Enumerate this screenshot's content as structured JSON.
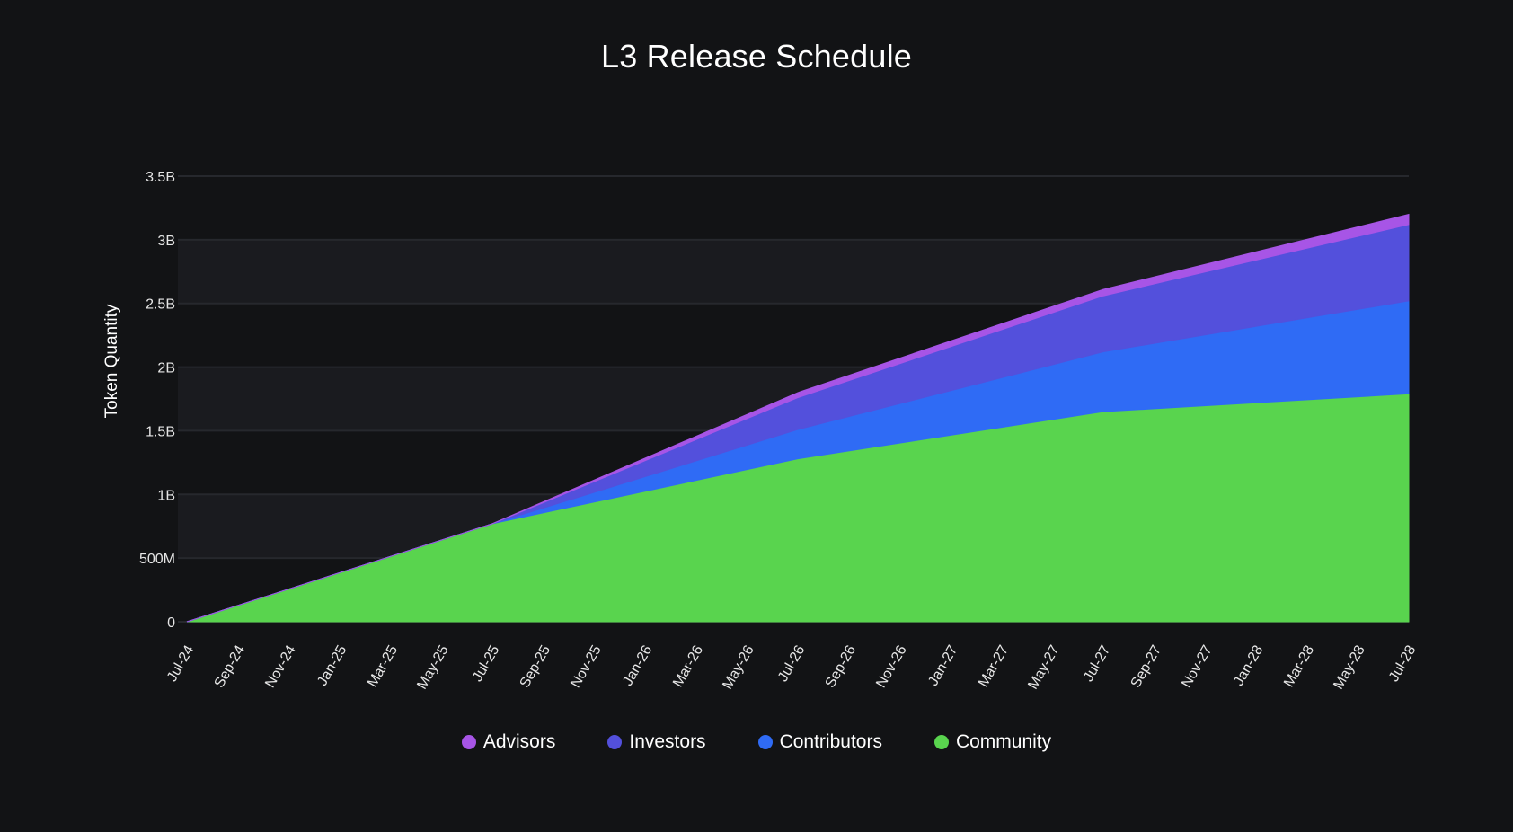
{
  "chart_data": {
    "type": "area",
    "stacked": true,
    "title": "L3 Release Schedule",
    "xlabel": "",
    "ylabel": "Token Quantity",
    "ylim": [
      0,
      3500000000
    ],
    "y_ticks": [
      {
        "value": 0,
        "label": "0"
      },
      {
        "value": 500000000,
        "label": "500M"
      },
      {
        "value": 1000000000,
        "label": "1B"
      },
      {
        "value": 1500000000,
        "label": "1.5B"
      },
      {
        "value": 2000000000,
        "label": "2B"
      },
      {
        "value": 2500000000,
        "label": "2.5B"
      },
      {
        "value": 3000000000,
        "label": "3B"
      },
      {
        "value": 3500000000,
        "label": "3.5B"
      }
    ],
    "x_ticks": [
      "Jul-24",
      "Sep-24",
      "Nov-24",
      "Jan-25",
      "Mar-25",
      "May-25",
      "Jul-25",
      "Sep-25",
      "Nov-25",
      "Jan-26",
      "Mar-26",
      "May-26",
      "Jul-26",
      "Sep-26",
      "Nov-26",
      "Jan-27",
      "Mar-27",
      "May-27",
      "Jul-27",
      "Sep-27",
      "Nov-27",
      "Jan-28",
      "Mar-28",
      "May-28",
      "Jul-28"
    ],
    "x": [
      "Jul-24",
      "Jul-25",
      "Jul-26",
      "Jul-27",
      "Jul-28"
    ],
    "grid": "horizontal",
    "legend_position": "bottom",
    "series": [
      {
        "name": "Community",
        "color": "#59d44e",
        "values": [
          0,
          770000000,
          1280000000,
          1650000000,
          1790000000
        ]
      },
      {
        "name": "Contributors",
        "color": "#2f6bf5",
        "values": [
          0,
          0,
          230000000,
          470000000,
          730000000
        ]
      },
      {
        "name": "Investors",
        "color": "#5350dc",
        "values": [
          0,
          0,
          250000000,
          440000000,
          600000000
        ]
      },
      {
        "name": "Advisors",
        "color": "#a755e6",
        "values": [
          0,
          0,
          40000000,
          50000000,
          80000000
        ]
      }
    ],
    "legend_order": [
      "Advisors",
      "Investors",
      "Contributors",
      "Community"
    ]
  }
}
